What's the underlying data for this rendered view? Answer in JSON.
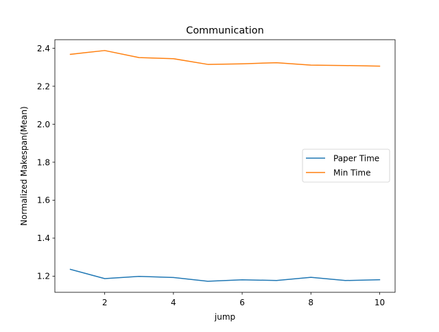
{
  "chart_data": {
    "type": "line",
    "title": "Communication",
    "xlabel": "jump",
    "ylabel": "Normalized Makespan(Mean)",
    "x": [
      1,
      2,
      3,
      4,
      5,
      6,
      7,
      8,
      9,
      10
    ],
    "xlim": [
      0.55,
      10.45
    ],
    "ylim": [
      1.115,
      2.445
    ],
    "xticks": [
      2,
      4,
      6,
      8,
      10
    ],
    "yticks": [
      1.2,
      1.4,
      1.6,
      1.8,
      2.0,
      2.2,
      2.4
    ],
    "xtick_labels": [
      "2",
      "4",
      "6",
      "8",
      "10"
    ],
    "ytick_labels": [
      "1.2",
      "1.4",
      "1.6",
      "1.8",
      "2.0",
      "2.2",
      "2.4"
    ],
    "grid": false,
    "legend_position": "center-right",
    "series": [
      {
        "name": "Paper Time",
        "color": "#1f77b4",
        "values": [
          1.236,
          1.187,
          1.199,
          1.193,
          1.173,
          1.181,
          1.177,
          1.194,
          1.177,
          1.181
        ]
      },
      {
        "name": "Min Time",
        "color": "#ff7f0e",
        "values": [
          2.368,
          2.388,
          2.351,
          2.345,
          2.315,
          2.318,
          2.324,
          2.311,
          2.309,
          2.306
        ]
      }
    ]
  }
}
